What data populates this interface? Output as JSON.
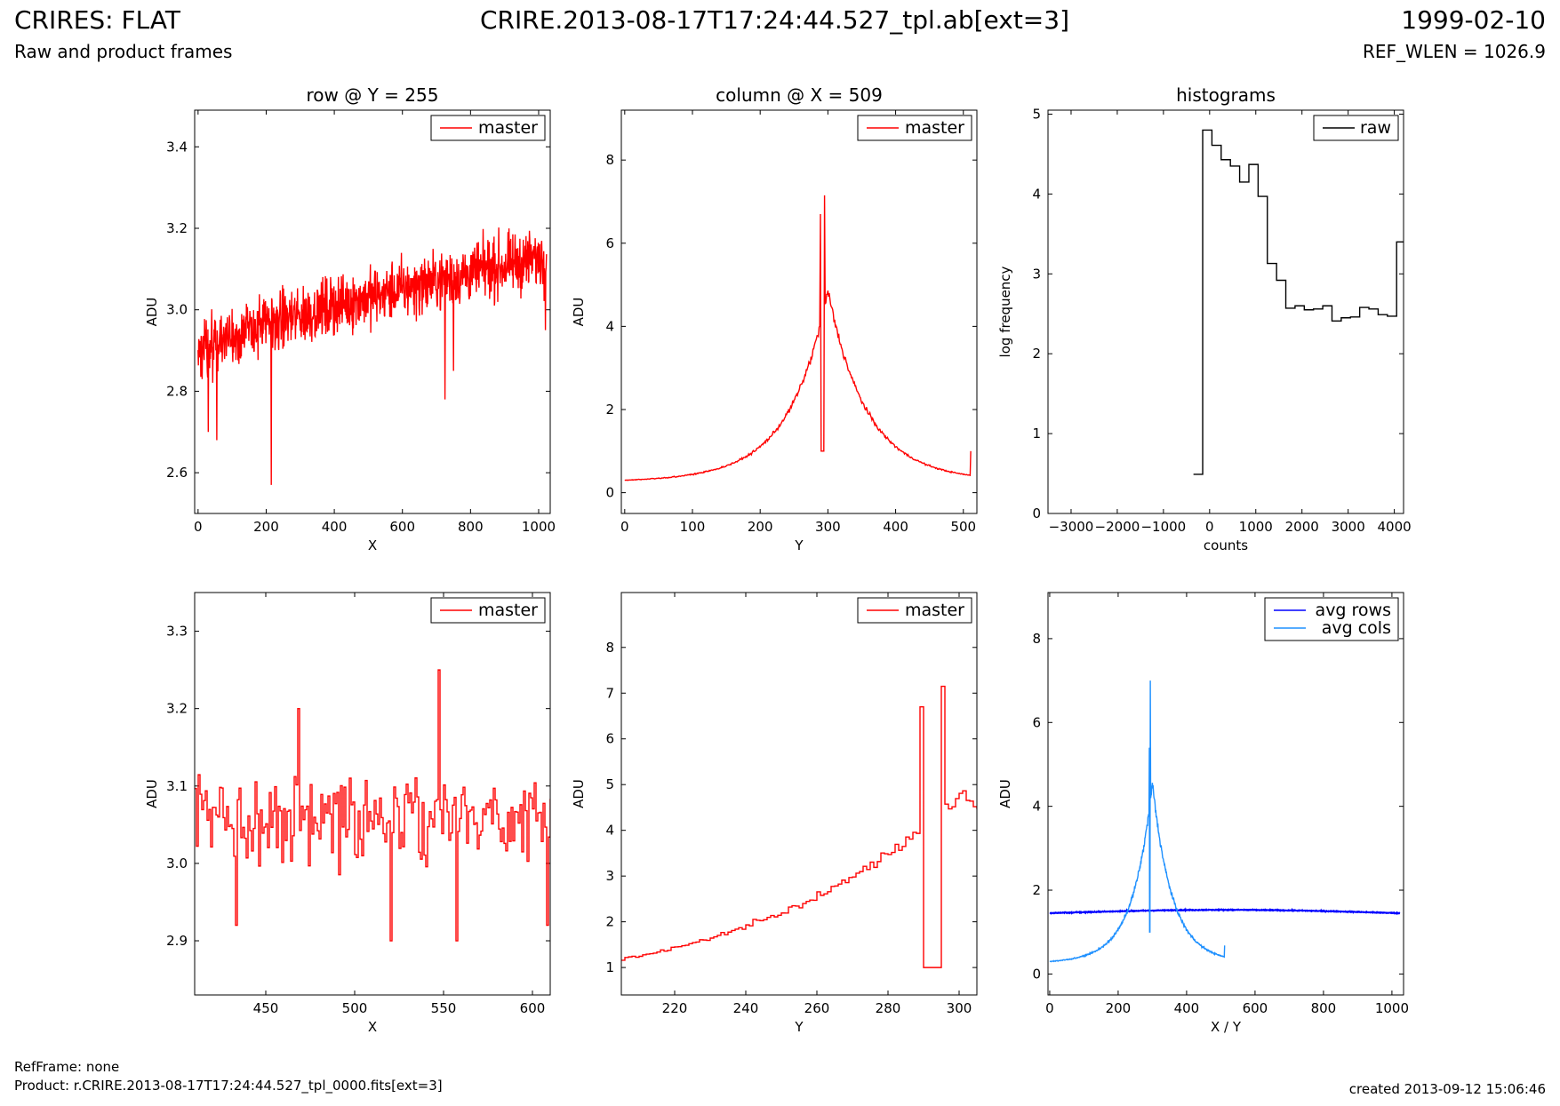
{
  "header": {
    "title": "CRIRES: FLAT",
    "subtitle": "Raw and product frames",
    "center_title": "CRIRE.2013-08-17T17:24:44.527_tpl.ab[ext=3]",
    "date": "1999-02-10",
    "ref_wlen": "REF_WLEN = 1026.9"
  },
  "footer": {
    "refframe": "RefFrame: none",
    "product": "Product: r.CRIRE.2013-08-17T17:24:44.527_tpl_0000.fits[ext=3]",
    "created": "created 2013-09-12 15:06:46"
  },
  "colors": {
    "red": "#ff0000",
    "black": "#000000",
    "blue": "#0000ff",
    "lightblue": "#1e90ff"
  },
  "chart_data": [
    {
      "id": "row",
      "type": "line",
      "title": "row @ Y = 255",
      "xlabel": "X",
      "ylabel": "ADU",
      "xlim": [
        -10,
        1034
      ],
      "ylim": [
        2.5,
        3.49
      ],
      "xticks": [
        0,
        200,
        400,
        600,
        800,
        1000
      ],
      "xticklabels": [
        "0",
        "200",
        "400",
        "600",
        "800",
        "1000"
      ],
      "yticks": [
        2.6,
        2.8,
        3.0,
        3.2,
        3.4
      ],
      "yticklabels": [
        "2.6",
        "2.8",
        "3.0",
        "3.2",
        "3.4"
      ],
      "series": [
        {
          "name": "master",
          "color": "#ff0000",
          "gen": "row",
          "n": 1024,
          "base": [
            2.9,
            3.13
          ],
          "noise": 0.07,
          "spikes": [
            [
              12,
              2.83
            ],
            [
              30,
              2.7
            ],
            [
              55,
              2.68
            ],
            [
              215,
              2.57
            ],
            [
              725,
              2.78
            ],
            [
              750,
              2.85
            ],
            [
              1020,
              2.95
            ]
          ]
        }
      ],
      "legend": "top-right"
    },
    {
      "id": "col",
      "type": "line",
      "title": "column @ X = 509",
      "xlabel": "Y",
      "ylabel": "ADU",
      "xlim": [
        -5,
        520
      ],
      "ylim": [
        -0.5,
        9.2
      ],
      "xticks": [
        0,
        100,
        200,
        300,
        400,
        500
      ],
      "xticklabels": [
        "0",
        "100",
        "200",
        "300",
        "400",
        "500"
      ],
      "yticks": [
        0,
        2,
        4,
        6,
        8
      ],
      "yticklabels": [
        "0",
        "2",
        "4",
        "6",
        "8"
      ],
      "series": [
        {
          "name": "master",
          "color": "#ff0000",
          "gen": "col",
          "n": 512,
          "peak": 300,
          "amp": 4.3,
          "spikes": [
            [
              289,
              6.7
            ],
            [
              290,
              1.0
            ],
            [
              291,
              1.0
            ],
            [
              292,
              1.0
            ],
            [
              293,
              1.0
            ],
            [
              294,
              1.0
            ],
            [
              295,
              7.15
            ],
            [
              511,
              1.0
            ]
          ]
        }
      ],
      "legend": "top-right"
    },
    {
      "id": "hist",
      "type": "line",
      "title": "histograms",
      "xlabel": "counts",
      "ylabel": "log frequency",
      "xlim": [
        -3500,
        4200
      ],
      "ylim": [
        0,
        5.05
      ],
      "xticks": [
        -3000,
        -2000,
        -1000,
        0,
        1000,
        2000,
        3000,
        4000
      ],
      "xticklabels": [
        "−3000",
        "−2000",
        "−1000",
        "0",
        "1000",
        "2000",
        "3000",
        "4000"
      ],
      "yticks": [
        0,
        1,
        2,
        3,
        4,
        5
      ],
      "yticklabels": [
        "0",
        "1",
        "2",
        "3",
        "4",
        "5"
      ],
      "series": [
        {
          "name": "raw",
          "color": "#000000",
          "gen": "steps",
          "x": [
            -350,
            -150,
            50,
            250,
            450,
            650,
            850,
            1050,
            1250,
            1450,
            1650,
            1850,
            2050,
            2250,
            2450,
            2650,
            2850,
            3050,
            3250,
            3450,
            3650,
            3850,
            4050,
            4200
          ],
          "y": [
            0.49,
            4.8,
            4.61,
            4.43,
            4.35,
            4.15,
            4.37,
            3.97,
            3.13,
            2.92,
            2.57,
            2.6,
            2.55,
            2.56,
            2.6,
            2.41,
            2.45,
            2.46,
            2.58,
            2.56,
            2.49,
            2.47,
            3.4,
            3.4
          ]
        }
      ],
      "legend": "top-right"
    },
    {
      "id": "rowzoom",
      "type": "line",
      "title": "",
      "xlabel": "X",
      "ylabel": "ADU",
      "xlim": [
        410,
        610
      ],
      "ylim": [
        2.83,
        3.35
      ],
      "xticks": [
        450,
        500,
        550,
        600
      ],
      "xticklabels": [
        "450",
        "500",
        "550",
        "600"
      ],
      "yticks": [
        2.9,
        3.0,
        3.1,
        3.2,
        3.3
      ],
      "yticklabels": [
        "2.9",
        "3.0",
        "3.1",
        "3.2",
        "3.3"
      ],
      "series": [
        {
          "name": "master",
          "color": "#ff0000",
          "gen": "steps_noise",
          "x0": 410,
          "x1": 610,
          "base": 3.06,
          "noise": 0.055,
          "spikes": [
            [
              433,
              2.92
            ],
            [
              468,
              3.2
            ],
            [
              520,
              2.9
            ],
            [
              547,
              3.25
            ],
            [
              557,
              2.9
            ],
            [
              608,
              2.92
            ]
          ]
        }
      ],
      "legend": "top-right"
    },
    {
      "id": "colzoom",
      "type": "line",
      "title": "",
      "xlabel": "Y",
      "ylabel": "ADU",
      "xlim": [
        205,
        305
      ],
      "ylim": [
        0.4,
        9.2
      ],
      "xticks": [
        220,
        240,
        260,
        280,
        300
      ],
      "xticklabels": [
        "220",
        "240",
        "260",
        "280",
        "300"
      ],
      "yticks": [
        1,
        2,
        3,
        4,
        5,
        6,
        7,
        8
      ],
      "yticklabels": [
        "1",
        "2",
        "3",
        "4",
        "5",
        "6",
        "7",
        "8"
      ],
      "series": [
        {
          "name": "master",
          "color": "#ff0000",
          "gen": "colzoom",
          "x0": 205,
          "x1": 305,
          "spikes": [
            [
              289,
              6.7
            ],
            [
              290,
              1.0
            ],
            [
              291,
              1.0
            ],
            [
              292,
              1.0
            ],
            [
              293,
              1.0
            ],
            [
              294,
              1.0
            ],
            [
              295,
              7.15
            ]
          ]
        }
      ],
      "legend": "top-right"
    },
    {
      "id": "avg",
      "type": "line",
      "title": "",
      "xlabel": "X / Y",
      "ylabel": "ADU",
      "xlim": [
        -5,
        1034
      ],
      "ylim": [
        -0.5,
        9.1
      ],
      "xticks": [
        0,
        200,
        400,
        600,
        800,
        1000
      ],
      "xticklabels": [
        "0",
        "200",
        "400",
        "600",
        "800",
        "1000"
      ],
      "yticks": [
        0,
        2,
        4,
        6,
        8
      ],
      "yticklabels": [
        "0",
        "2",
        "4",
        "6",
        "8"
      ],
      "series": [
        {
          "name": "avg rows",
          "color": "#0000ff",
          "gen": "flat",
          "n": 1024,
          "base": 1.45,
          "bump": 0.08
        },
        {
          "name": "avg cols",
          "color": "#1e90ff",
          "gen": "col",
          "n": 512,
          "peak": 300,
          "amp": 4.0,
          "spikes": [
            [
              291,
              5.4
            ],
            [
              292,
              1.0
            ],
            [
              293,
              1.0
            ],
            [
              294,
              7.0
            ],
            [
              511,
              0.68
            ]
          ]
        }
      ],
      "legend": "top-right"
    }
  ]
}
